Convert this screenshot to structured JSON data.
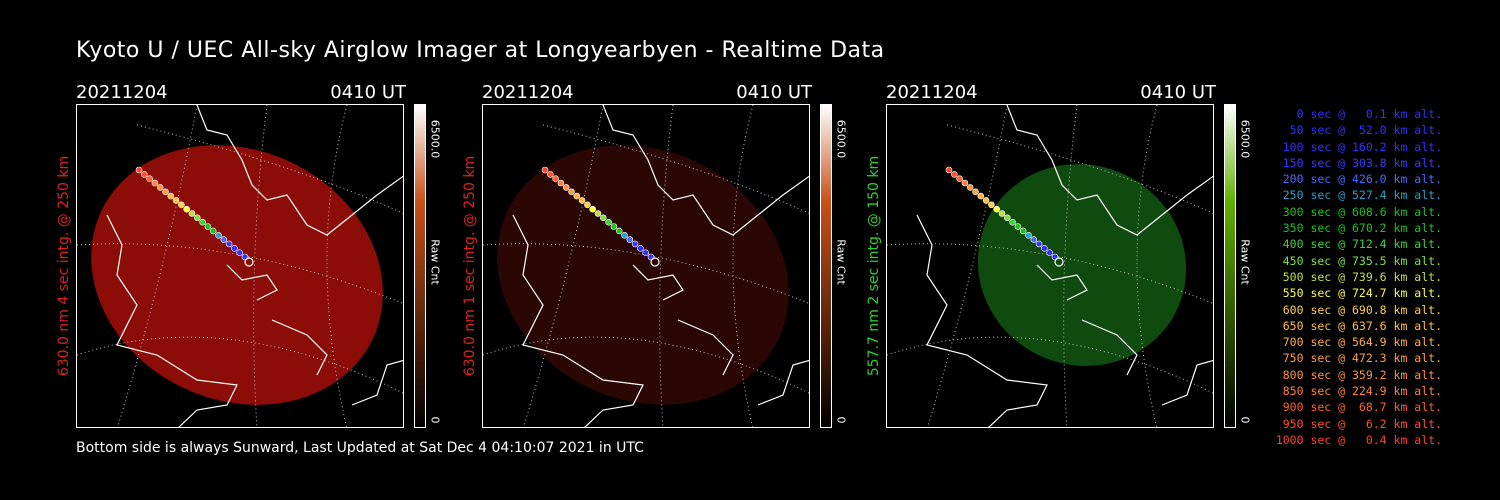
{
  "title": "Kyoto U / UEC All-sky Airglow Imager at Longyearbyen - Realtime Data",
  "footer": "Bottom side is always Sunward, Last Updated at Sat Dec  4 04:10:07 2021 in UTC",
  "panels": [
    {
      "date": "20211204",
      "time": "0410 UT",
      "ylabel": "630.0 nm 4 sec intg. @ 250 km",
      "label_color": "#e02020",
      "cbar_max": "6500.0",
      "cbar_min": "0",
      "cbar_unit": "Raw Cnt",
      "fill_color": "#8c0c08",
      "cbar_color": "#c85018"
    },
    {
      "date": "20211204",
      "time": "0410 UT",
      "ylabel": "630.0 nm 1 sec intg. @ 250 km",
      "label_color": "#e02020",
      "cbar_max": "6500.0",
      "cbar_min": "0",
      "cbar_unit": "Raw Cnt",
      "fill_color": "#2a0604",
      "cbar_color": "#c85018"
    },
    {
      "date": "20211204",
      "time": "0410 UT",
      "ylabel": "557.7 nm 2 sec intg. @ 150 km",
      "label_color": "#30d030",
      "cbar_max": "6500.0",
      "cbar_min": "0",
      "cbar_unit": "Raw Cnt",
      "fill_color": "#0f4a0f",
      "cbar_color": "#60b000"
    }
  ],
  "legend": [
    {
      "text": "0 sec @   0.1 km alt.",
      "color": "#3030ff"
    },
    {
      "text": "50 sec @  52.0 km alt.",
      "color": "#3030ff"
    },
    {
      "text": "100 sec @ 160.2 km alt.",
      "color": "#3030ff"
    },
    {
      "text": "150 sec @ 303.8 km alt.",
      "color": "#3a3aff"
    },
    {
      "text": "200 sec @ 426.0 km alt.",
      "color": "#4a6aff"
    },
    {
      "text": "250 sec @ 527.4 km alt.",
      "color": "#2aa0c8"
    },
    {
      "text": "300 sec @ 608.6 km alt.",
      "color": "#20c020"
    },
    {
      "text": "350 sec @ 670.2 km alt.",
      "color": "#20c020"
    },
    {
      "text": "400 sec @ 712.4 km alt.",
      "color": "#40d040"
    },
    {
      "text": "450 sec @ 735.5 km alt.",
      "color": "#80e040"
    },
    {
      "text": "500 sec @ 739.6 km alt.",
      "color": "#c0e040"
    },
    {
      "text": "550 sec @ 724.7 km alt.",
      "color": "#ffff40"
    },
    {
      "text": "600 sec @ 690.8 km alt.",
      "color": "#ffd040"
    },
    {
      "text": "650 sec @ 637.6 km alt.",
      "color": "#ffc040"
    },
    {
      "text": "700 sec @ 564.9 km alt.",
      "color": "#ffb040"
    },
    {
      "text": "750 sec @ 472.3 km alt.",
      "color": "#ffa040"
    },
    {
      "text": "800 sec @ 359.2 km alt.",
      "color": "#ff9040"
    },
    {
      "text": "850 sec @ 224.9 km alt.",
      "color": "#ff8040"
    },
    {
      "text": "900 sec @  68.7 km alt.",
      "color": "#ff6030"
    },
    {
      "text": "950 sec @   6.2 km alt.",
      "color": "#ff5030"
    },
    {
      "text": "1000 sec @   0.4 km alt.",
      "color": "#ff4030"
    }
  ]
}
